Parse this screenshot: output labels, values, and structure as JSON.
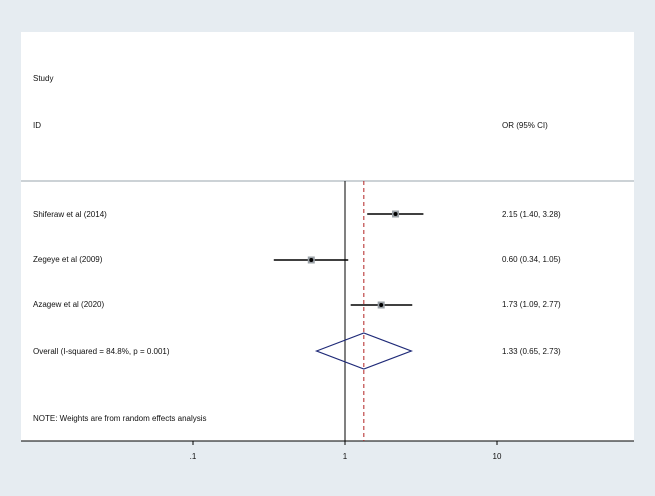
{
  "header": {
    "study_label": "Study",
    "id_label": "ID",
    "or_label": "OR (95% CI)"
  },
  "rows": [
    {
      "label": "Shiferaw et al (2014)",
      "or_text": "2.15 (1.40, 3.28)"
    },
    {
      "label": "Zegeye et al (2009)",
      "or_text": "0.60 (0.34, 1.05)"
    },
    {
      "label": "Azagew et al (2020)",
      "or_text": "1.73 (1.09, 2.77)"
    },
    {
      "label": "Overall  (I-squared = 84.8%, p = 0.001)",
      "or_text": "1.33 (0.65, 2.73)"
    }
  ],
  "note": "NOTE: Weights are from random effects analysis",
  "chart_data": {
    "type": "forest",
    "scale": "log",
    "xlim": [
      0.05,
      44
    ],
    "x_ticks": [
      {
        "value": 0.1,
        "label": ".1"
      },
      {
        "value": 1,
        "label": "1"
      },
      {
        "value": 10,
        "label": "10"
      }
    ],
    "null_line": 1,
    "overall_line": 1.33,
    "studies": [
      {
        "label": "Shiferaw et al (2014)",
        "or": 2.15,
        "lower": 1.4,
        "upper": 3.28
      },
      {
        "label": "Zegeye et al (2009)",
        "or": 0.6,
        "lower": 0.34,
        "upper": 1.05
      },
      {
        "label": "Azagew et al (2020)",
        "or": 1.73,
        "lower": 1.09,
        "upper": 2.77
      }
    ],
    "overall": {
      "label": "Overall  (I-squared = 84.8%, p = 0.001)",
      "or": 1.33,
      "lower": 0.65,
      "upper": 2.73
    },
    "colors": {
      "background": "#e6ecf1",
      "plot": "#ffffff",
      "ci_line": "#000000",
      "diamond": "#1f2a78",
      "overall_line": "#b22222",
      "axis": "#000000"
    }
  }
}
